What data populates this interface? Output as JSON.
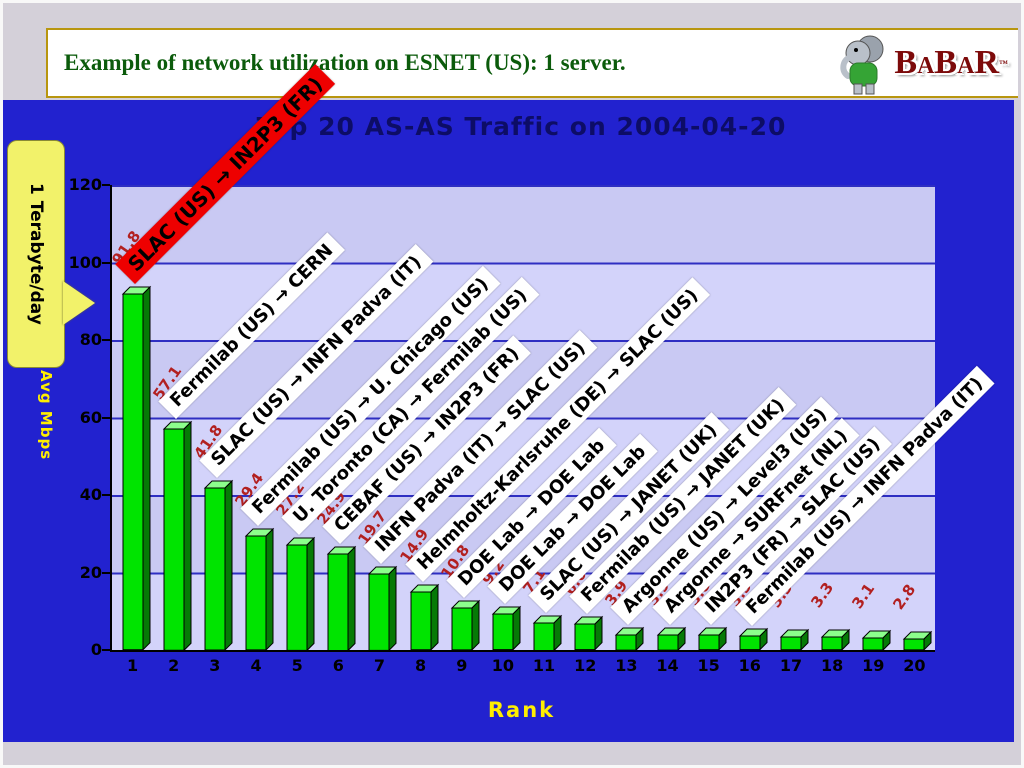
{
  "slide": {
    "title": "Example of network utilization on ESNET (US): 1 server.",
    "callout_label": "1 Terabyte/day",
    "logo": {
      "letters": [
        "B",
        "A",
        "B",
        "A",
        "R"
      ],
      "tm": "™"
    }
  },
  "colors": {
    "panel_blue": "#2222cf",
    "plot_bg": "#c9c9f3",
    "grid_line": "#2e2ec2",
    "bar_front": "#00e400",
    "bar_side": "#067a06",
    "bar_top": "#8cff8c",
    "value_label_red": "#b22020",
    "highlight_red": "#ee0000",
    "axis_title_yellow": "#ffee00",
    "callout_yellow": "#f2f26a",
    "title_green": "#0b5b0b",
    "logo_dark_red": "#7d0a0a"
  },
  "chart_data": {
    "type": "bar",
    "title": "Top 20 AS-AS Traffic on 2004-04-20",
    "xlabel": "Rank",
    "ylabel": "Avg Mbps",
    "ylim": [
      0,
      120
    ],
    "yticks": [
      0,
      20,
      40,
      60,
      80,
      100,
      120
    ],
    "grid": true,
    "categories": [
      "1",
      "2",
      "3",
      "4",
      "5",
      "6",
      "7",
      "8",
      "9",
      "10",
      "11",
      "12",
      "13",
      "14",
      "15",
      "16",
      "17",
      "18",
      "19",
      "20"
    ],
    "values": [
      91.8,
      57.1,
      41.8,
      29.4,
      27.2,
      24.9,
      19.7,
      14.9,
      10.8,
      9.2,
      7.1,
      6.6,
      3.9,
      3.9,
      3.8,
      3.5,
      3.3,
      3.3,
      3.1,
      2.8
    ],
    "highlight_index": 0,
    "bar_links": [
      "SLAC (US) → IN2P3 (FR)",
      "Fermilab (US) → CERN",
      "SLAC (US) → INFN Padva (IT)",
      "Fermilab (US) → U. Chicago (US)",
      "U. Toronto (CA) → Fermilab (US)",
      "CEBAF (US) → IN2P3 (FR)",
      "INFN Padva (IT) → SLAC (US)",
      "Helmholtz-Karlsruhe (DE) → SLAC (US)",
      "DOE Lab → DOE Lab",
      "DOE Lab → DOE Lab",
      "SLAC (US) → JANET (UK)",
      "Fermilab (US) → JANET (UK)",
      "Argonne (US) → Level3 (US)",
      "Argonne → SURFnet (NL)",
      "IN2P3 (FR) → SLAC (US)",
      "Fermilab (US) → INFN Padva (IT)",
      null,
      null,
      null,
      null
    ]
  }
}
